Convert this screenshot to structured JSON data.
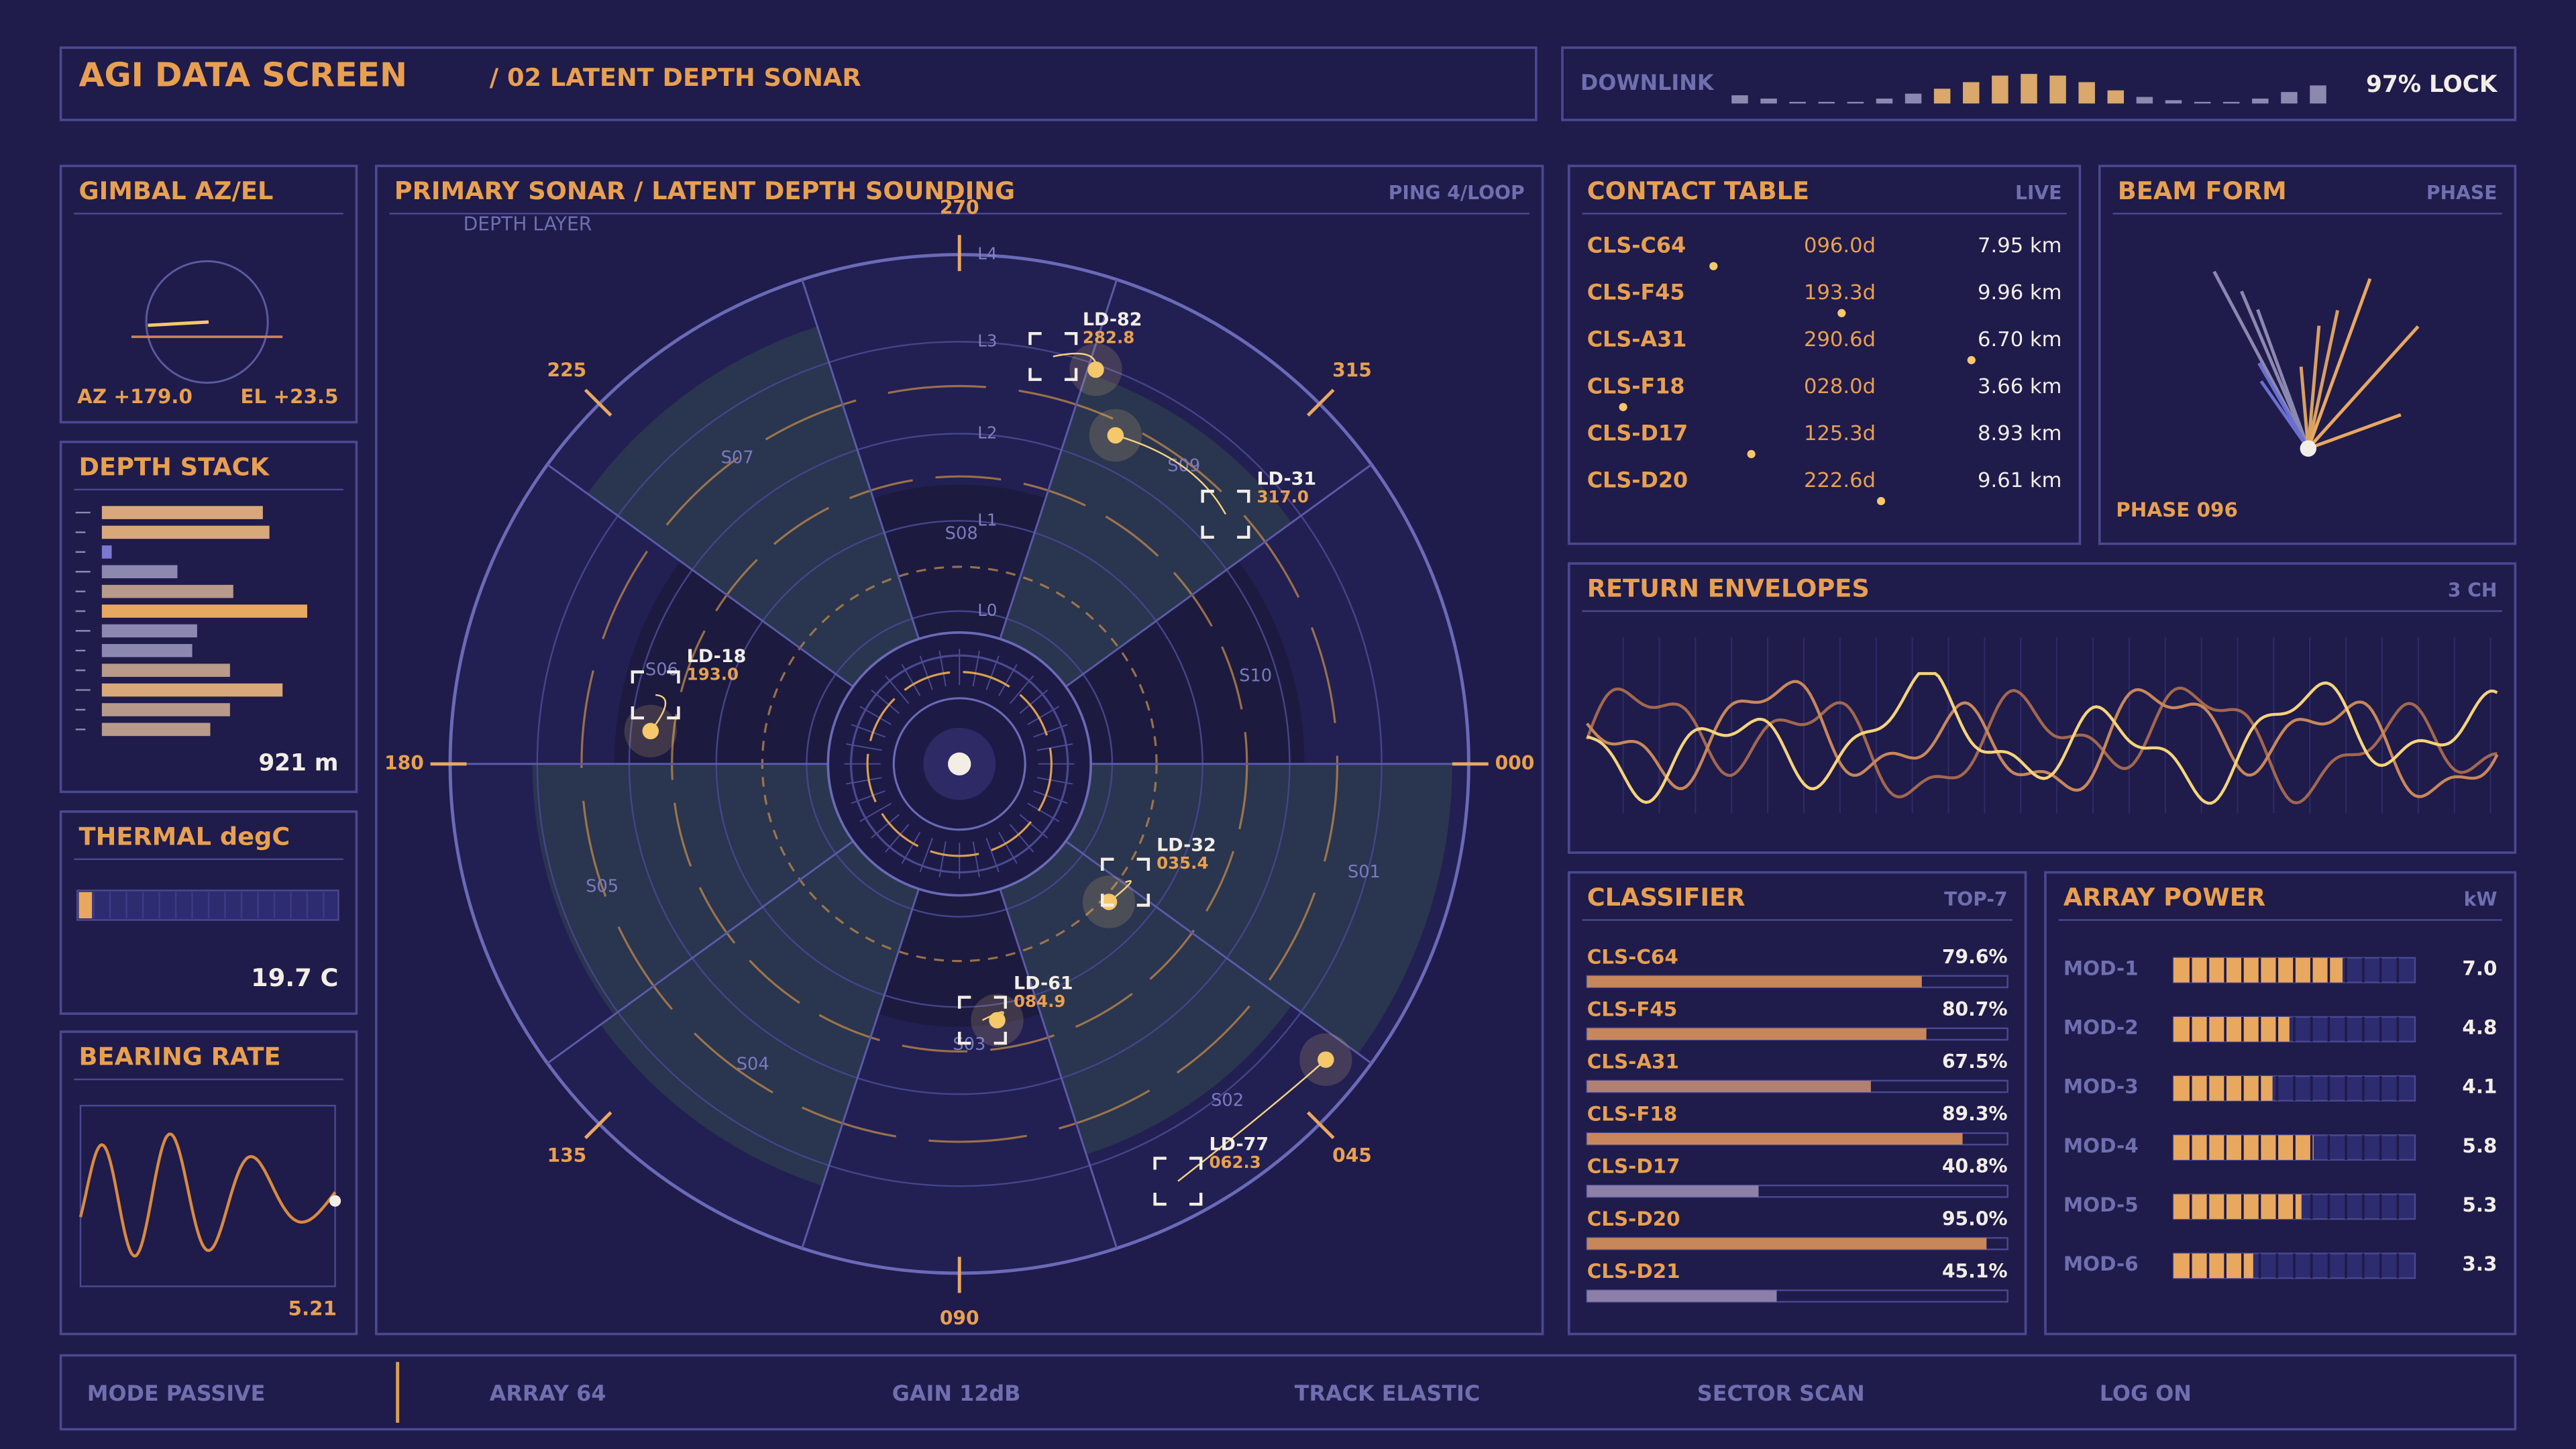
{
  "header": {
    "title": "AGI DATA SCREEN",
    "subtitle": "/ 02 LATENT DEPTH SONAR"
  },
  "downlink": {
    "label": "DOWNLINK",
    "status": "97% LOCK"
  },
  "gimbal": {
    "title": "GIMBAL AZ/EL",
    "az": "AZ +179.0",
    "el": "EL +23.5"
  },
  "depth_stack": {
    "title": "DEPTH STACK",
    "readout": "921 m"
  },
  "thermal": {
    "title": "THERMAL degC",
    "readout": "19.7 C"
  },
  "bearing_rate": {
    "title": "BEARING RATE",
    "readout": "5.21"
  },
  "sonar": {
    "title": "PRIMARY SONAR / LATENT DEPTH SOUNDING",
    "status": "PING 4/LOOP",
    "layer_label": "DEPTH LAYER",
    "bearings": [
      "000",
      "045",
      "090",
      "135",
      "180",
      "225",
      "270",
      "315"
    ],
    "layers": [
      "L4",
      "L3",
      "L2",
      "L1",
      "L0"
    ],
    "sectors": [
      "S01",
      "S02",
      "S03",
      "S04",
      "S05",
      "S06",
      "S07",
      "S08",
      "S09",
      "S10"
    ],
    "contacts": [
      {
        "id": "LD-82",
        "value": "282.8"
      },
      {
        "id": "LD-31",
        "value": "317.0"
      },
      {
        "id": "LD-18",
        "value": "193.0"
      },
      {
        "id": "LD-32",
        "value": "035.4"
      },
      {
        "id": "LD-61",
        "value": "084.9"
      },
      {
        "id": "LD-77",
        "value": "062.3"
      }
    ]
  },
  "contact_table": {
    "title": "CONTACT TABLE",
    "status": "LIVE",
    "rows": [
      [
        "CLS-C64",
        "096.0d",
        "7.95 km"
      ],
      [
        "CLS-F45",
        "193.3d",
        "9.96 km"
      ],
      [
        "CLS-A31",
        "290.6d",
        "6.70 km"
      ],
      [
        "CLS-F18",
        "028.0d",
        "3.66 km"
      ],
      [
        "CLS-D17",
        "125.3d",
        "8.93 km"
      ],
      [
        "CLS-D20",
        "222.6d",
        "9.61 km"
      ]
    ]
  },
  "beam_form": {
    "title": "BEAM FORM",
    "status": "PHASE",
    "readout": "PHASE 096"
  },
  "return_envelopes": {
    "title": "RETURN ENVELOPES",
    "status": "3 CH"
  },
  "classifier": {
    "title": "CLASSIFIER",
    "status": "TOP-7",
    "max": 100,
    "rows": [
      {
        "name": "CLS-C64",
        "value": 79.6,
        "label": "79.6%",
        "color": "#c8875a"
      },
      {
        "name": "CLS-F45",
        "value": 80.7,
        "label": "80.7%",
        "color": "#c8875a"
      },
      {
        "name": "CLS-A31",
        "value": 67.5,
        "label": "67.5%",
        "color": "#b08070"
      },
      {
        "name": "CLS-F18",
        "value": 89.3,
        "label": "89.3%",
        "color": "#c8875a"
      },
      {
        "name": "CLS-D17",
        "value": 40.8,
        "label": "40.8%",
        "color": "#8c80a8"
      },
      {
        "name": "CLS-D20",
        "value": 95.0,
        "label": "95.0%",
        "color": "#c8875a"
      },
      {
        "name": "CLS-D21",
        "value": 45.1,
        "label": "45.1%",
        "color": "#8c80a8"
      }
    ]
  },
  "array_power": {
    "title": "ARRAY POWER",
    "unit": "kW",
    "max": 10,
    "rows": [
      {
        "name": "MOD-1",
        "value": 7.0,
        "label": "7.0"
      },
      {
        "name": "MOD-2",
        "value": 4.8,
        "label": "4.8"
      },
      {
        "name": "MOD-3",
        "value": 4.1,
        "label": "4.1"
      },
      {
        "name": "MOD-4",
        "value": 5.8,
        "label": "5.8"
      },
      {
        "name": "MOD-5",
        "value": 5.3,
        "label": "5.3"
      },
      {
        "name": "MOD-6",
        "value": 3.3,
        "label": "3.3"
      }
    ]
  },
  "footer": [
    "MODE PASSIVE",
    "ARRAY 64",
    "GAIN 12dB",
    "TRACK ELASTIC",
    "SECTOR SCAN",
    "LOG ON"
  ]
}
